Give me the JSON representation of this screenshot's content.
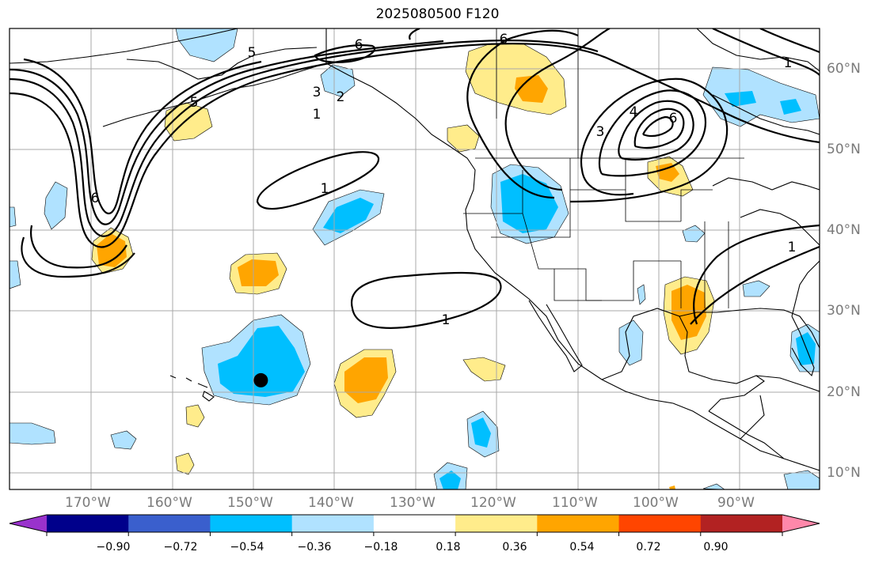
{
  "title": "2025080500 F120",
  "lon_labels": [
    "170°W",
    "160°W",
    "150°W",
    "140°W",
    "130°W",
    "120°W",
    "110°W",
    "100°W",
    "90°W"
  ],
  "lat_labels": [
    "60°N",
    "50°N",
    "40°N",
    "30°N",
    "20°N",
    "10°N"
  ],
  "colorbar": {
    "colors": [
      "#9932cc",
      "#00008b",
      "#3a5fcd",
      "#00bfff",
      "#b0e2ff",
      "#ffffff",
      "#ffec8b",
      "#ffa500",
      "#ff4500",
      "#b22222",
      "#ff88aa"
    ],
    "tick_labels": [
      "−0.90",
      "−0.72",
      "−0.54",
      "−0.36",
      "−0.18",
      "0.18",
      "0.36",
      "0.54",
      "0.72",
      "0.90"
    ]
  },
  "contour_labels": [
    "6",
    "5",
    "6",
    "3",
    "2",
    "1",
    "1",
    "1",
    "5",
    "6",
    "6",
    "3",
    "4",
    "1",
    "1"
  ],
  "marker": {
    "lon": -149,
    "lat": 21.5
  }
}
